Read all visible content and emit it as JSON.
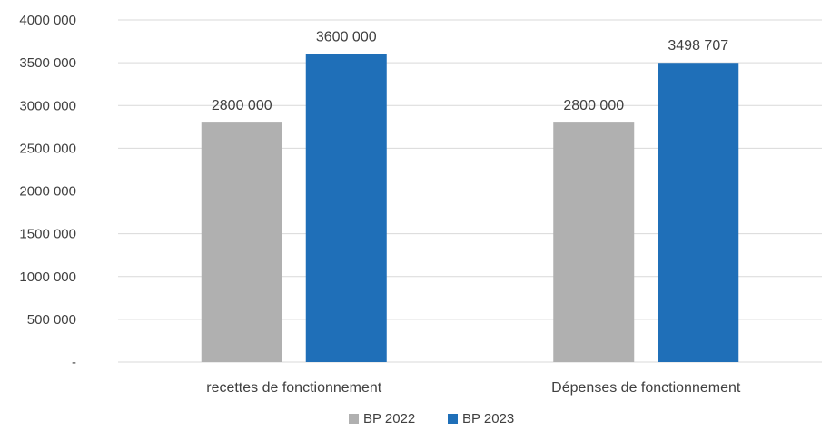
{
  "chart_data": {
    "type": "bar",
    "categories": [
      "recettes de fonctionnement",
      "Dépenses de fonctionnement"
    ],
    "series": [
      {
        "name": "BP 2022",
        "values": [
          2800000,
          2800000
        ],
        "labels": [
          "2800 000",
          "2800 000"
        ],
        "color": "#b0b0b0"
      },
      {
        "name": "BP 2023",
        "values": [
          3600000,
          3498707
        ],
        "labels": [
          "3600 000",
          "3498 707"
        ],
        "color": "#1f6fb8"
      }
    ],
    "ylim": [
      0,
      4000000
    ],
    "yticks": [
      0,
      500000,
      1000000,
      1500000,
      2000000,
      2500000,
      3000000,
      3500000,
      4000000
    ],
    "ytick_labels": [
      "-",
      "500 000",
      "1000 000",
      "1500 000",
      "2000 000",
      "2500 000",
      "3000 000",
      "3500 000",
      "4000 000"
    ],
    "grid": true,
    "legend_position": "bottom"
  }
}
